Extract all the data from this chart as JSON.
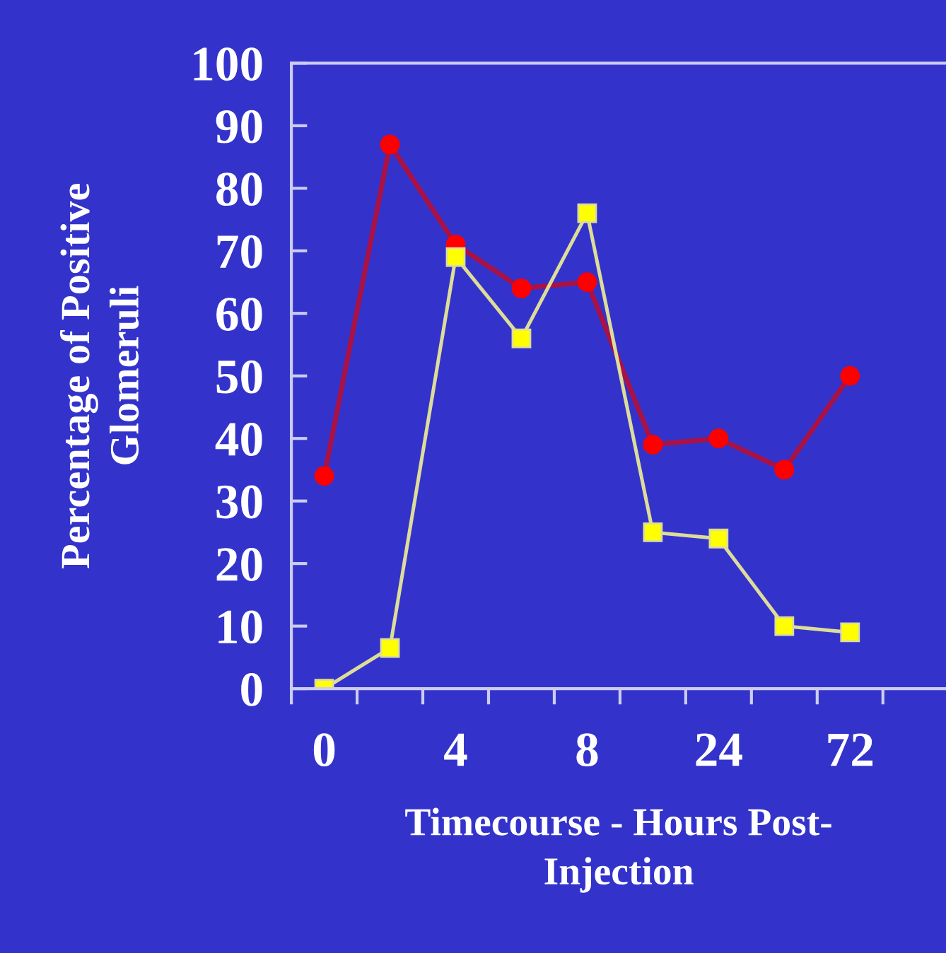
{
  "chart_data": {
    "type": "line",
    "xlabel": "Timecourse - Hours Post-\nInjection",
    "ylabel": "Percentage of Positive\nGlomeruli",
    "categories": [
      "0",
      null,
      "4",
      null,
      "8",
      null,
      "24",
      null,
      "72"
    ],
    "series": [
      {
        "color": "#ff0000",
        "marker": "circle",
        "values": [
          34,
          87,
          71,
          64,
          65,
          39,
          40,
          35,
          50
        ]
      },
      {
        "color": "#ffff00",
        "marker": "square",
        "values": [
          0,
          6.5,
          69,
          56,
          76,
          25,
          24,
          10,
          9
        ]
      }
    ],
    "ylim": [
      0,
      100
    ],
    "yticks": [
      0,
      10,
      20,
      30,
      40,
      50,
      60,
      70,
      80,
      90,
      100
    ],
    "grid": false,
    "legend": false
  }
}
